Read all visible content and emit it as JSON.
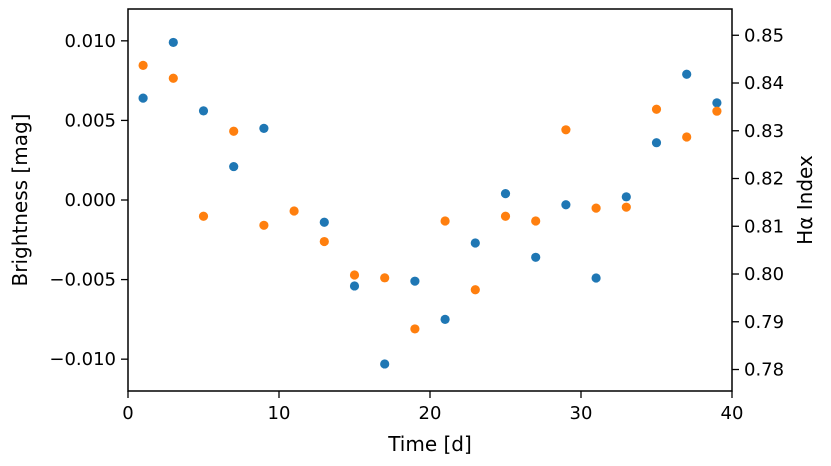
{
  "chart_data": {
    "type": "scatter",
    "xlabel": "Time [d]",
    "ylabel_left": "Brightness [mag]",
    "ylabel_right": "Hα Index",
    "xlim": [
      0,
      40
    ],
    "ylim_left": [
      -0.012,
      0.012
    ],
    "ylim_right": [
      0.7755,
      0.8555
    ],
    "grid": false,
    "x_ticks": [
      0,
      10,
      20,
      30,
      40
    ],
    "y_left_ticks": [
      -0.01,
      -0.005,
      0.0,
      0.005,
      0.01
    ],
    "y_left_tick_labels": [
      "−0.010",
      "−0.005",
      "0.000",
      "0.005",
      "0.010"
    ],
    "y_right_ticks": [
      0.78,
      0.79,
      0.8,
      0.81,
      0.82,
      0.83,
      0.84,
      0.85
    ],
    "y_right_tick_labels": [
      "0.78",
      "0.79",
      "0.80",
      "0.81",
      "0.82",
      "0.83",
      "0.84",
      "0.85"
    ],
    "series": [
      {
        "axis": "left",
        "color": "#1f77b4",
        "x": [
          1,
          3,
          5,
          7,
          9,
          13,
          15,
          17,
          19,
          21,
          23,
          25,
          27,
          29,
          31,
          33,
          35,
          37,
          39
        ],
        "y": [
          0.0064,
          0.0099,
          0.0056,
          0.0021,
          0.0045,
          -0.0014,
          -0.0054,
          -0.0103,
          -0.0051,
          -0.0075,
          -0.0027,
          0.0004,
          -0.0036,
          -0.0003,
          -0.0049,
          0.0002,
          0.0036,
          0.0079,
          0.0061
        ]
      },
      {
        "axis": "right",
        "color": "#ff7f0e",
        "x": [
          1,
          3,
          5,
          7,
          9,
          11,
          13,
          15,
          17,
          19,
          21,
          23,
          25,
          27,
          29,
          31,
          33,
          35,
          37,
          39
        ],
        "y": [
          0.8437,
          0.841,
          0.8121,
          0.8299,
          0.8102,
          0.8132,
          0.8068,
          0.7998,
          0.7992,
          0.7885,
          0.8111,
          0.7967,
          0.8121,
          0.8111,
          0.8302,
          0.8138,
          0.814,
          0.8345,
          0.8287,
          0.8341
        ]
      }
    ]
  }
}
